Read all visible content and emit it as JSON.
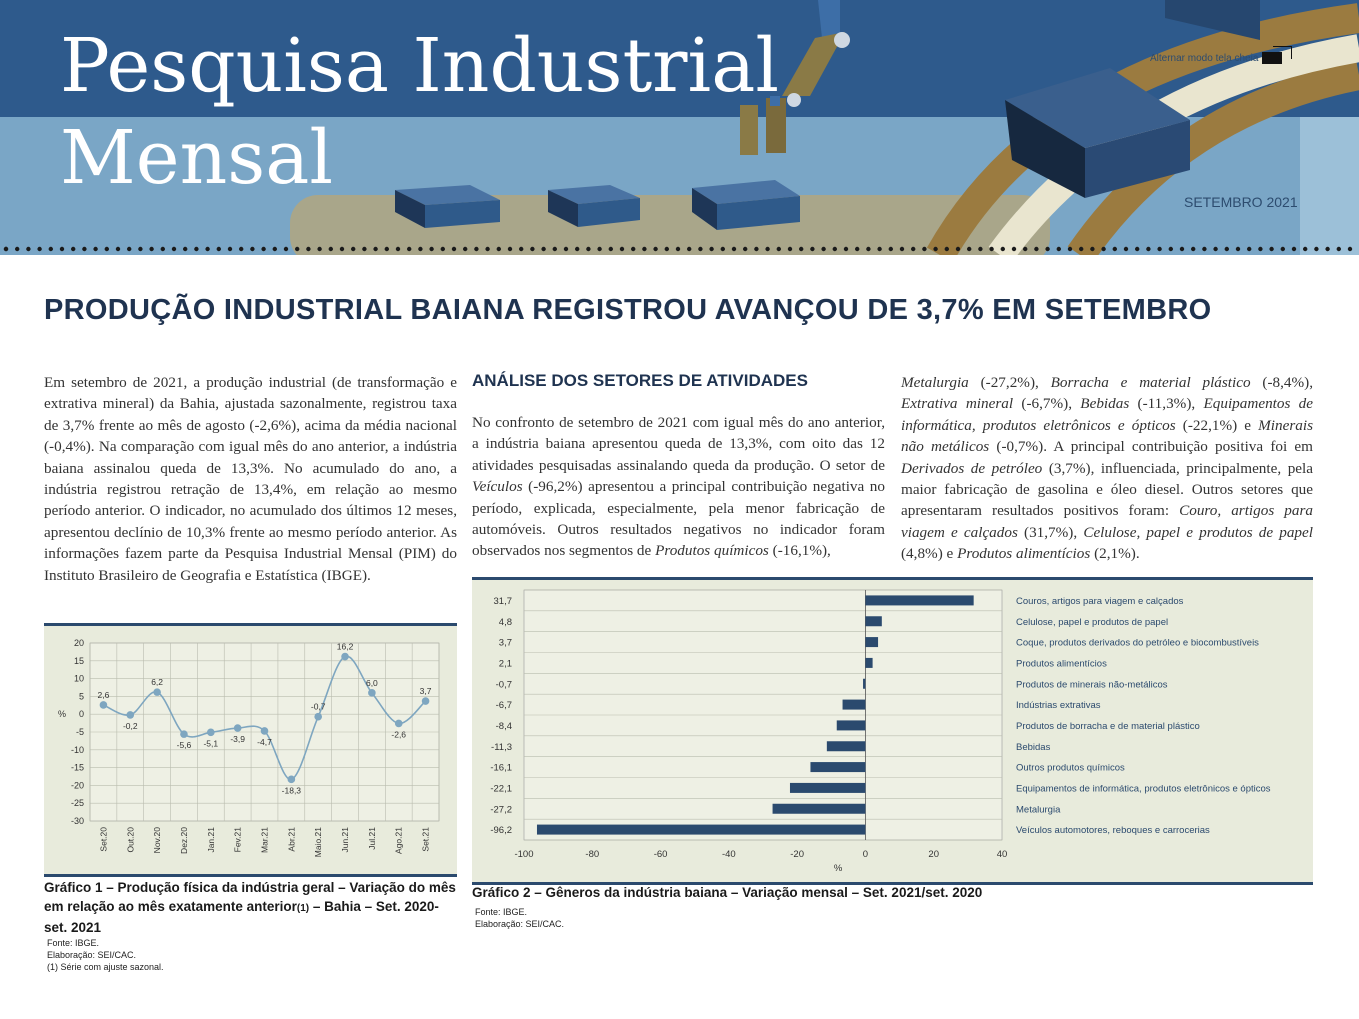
{
  "header": {
    "title_line1": "Pesquisa Industrial",
    "title_line2": "Mensal",
    "fullscreen_label": "Alternar modo tela cheia",
    "edition": "SETEMBRO 2021"
  },
  "headline": "PRODUÇÃO INDUSTRIAL BAIANA REGISTROU AVANÇOU DE 3,7% EM SETEMBRO",
  "intro_paragraph": "Em setembro de 2021, a produção industrial (de transformação e extrativa mineral) da Bahia, ajustada sazonalmente, registrou taxa de 3,7% frente ao mês de agosto (-2,6%), acima da média nacional (-0,4%). Na comparação com igual mês do ano anterior, a indústria baiana assinalou queda de 13,3%. No acumulado do ano, a indústria registrou retração de 13,4%, em relação ao mesmo período anterior. O indicador, no acumulado dos últimos 12 meses, apresentou declínio de 10,3% frente ao mesmo período anterior. As informações fazem parte da Pesquisa Industrial Mensal (PIM) do Instituto Brasileiro de Geografia e Estatística (IBGE).",
  "analysis": {
    "title": "ANÁLISE DOS SETORES DE ATIVIDADES",
    "p1_a": "No confronto de setembro de 2021 com igual mês do ano anterior, a indústria baiana apresentou queda de 13,3%, com oito das 12 atividades pesquisadas assinalando queda da produção. O setor de ",
    "p1_vehicles": "Veículos",
    "p1_b": " (-96,2%) apresentou a principal contribuição negativa no período, explicada, especialmente, pela menor fabricação de automóveis. Outros resultados negativos no indicador foram observados nos segmentos de ",
    "p1_chem": "Produtos químicos",
    "p1_c": " (-16,1%),",
    "p2_metal": "Metalurgia",
    "p2_a": " (-27,2%), ",
    "p2_rubber": "Borracha e material plástico",
    "p2_b": " (-8,4%), ",
    "p2_extr": "Extrativa mineral",
    "p2_c": " (-6,7%), ",
    "p2_bev": "Bebidas",
    "p2_d": " (-11,3%), ",
    "p2_equip": "Equipamentos de informática, produtos eletrônicos e ópticos",
    "p2_e": " (-22,1%) e ",
    "p2_minerals": "Minerais não metálicos",
    "p2_f": " (-0,7%). A principal contribuição positiva foi em ",
    "p2_petro": "Derivados de petróleo",
    "p2_g": " (3,7%), influenciada, principalmente, pela maior fabricação de gasolina e óleo diesel. Outros setores que apresentaram resultados positivos foram: ",
    "p2_leather": "Couro, artigos para viagem e calçados",
    "p2_h": " (31,7%), ",
    "p2_cellulose": "Celulose, papel e produtos de papel",
    "p2_i": " (4,8%) e ",
    "p2_food": "Produtos alimentícios",
    "p2_j": " (2,1%)."
  },
  "captions": {
    "chart1_a": "Gráfico 1 – Produção física da indústria geral – Variação do mês em relação ao mês exatamente anterior",
    "chart1_sup": "(1)",
    "chart1_b": " – Bahia – Set. 2020-set. 2021",
    "chart1_source": "Fonte: IBGE.",
    "chart1_elab": "Elaboração: SEI/CAC.",
    "chart1_note": "(1) Série com ajuste sazonal.",
    "chart2": "Gráfico 2 – Gêneros da indústria baiana – Variação mensal – Set. 2021/set. 2020",
    "chart2_source": "Fonte: IBGE.",
    "chart2_elab": "Elaboração: SEI/CAC."
  },
  "chart_data": [
    {
      "type": "line",
      "title": "Gráfico 1 – Produção física da indústria geral – Variação do mês em relação ao mês exatamente anterior(1) – Bahia – Set. 2020-set. 2021",
      "ylabel": "%",
      "ylim": [
        -30,
        20
      ],
      "yticks": [
        20,
        15,
        10,
        5,
        0,
        -5,
        -10,
        -15,
        -20,
        -25,
        -30
      ],
      "grid": true,
      "categories": [
        "Set.20",
        "Out.20",
        "Nov.20",
        "Dez.20",
        "Jan.21",
        "Fev.21",
        "Mar.21",
        "Abr.21",
        "Maio.21",
        "Jun.21",
        "Jul.21",
        "Ago.21",
        "Set.21"
      ],
      "values": [
        2.6,
        -0.2,
        6.2,
        -5.6,
        -5.1,
        -3.9,
        -4.7,
        -18.3,
        -0.7,
        16.2,
        6.0,
        -2.6,
        3.7
      ],
      "labels": [
        "2,6",
        "-0,2",
        "6,2",
        "-5,6",
        "-5,1",
        "-3,9",
        "-4,7",
        "-18,3",
        "-0,7",
        "16,2",
        "6,0",
        "-2,6",
        "3,7"
      ],
      "color": "#7ea6c0"
    },
    {
      "type": "bar",
      "orientation": "horizontal",
      "title": "Gráfico 2 – Gêneros da indústria baiana – Variação mensal – Set. 2021/set. 2020",
      "xlabel": "%",
      "xlim": [
        -100,
        40
      ],
      "xticks": [
        -100,
        -80,
        -60,
        -40,
        -20,
        0,
        20,
        40
      ],
      "grid": true,
      "categories": [
        "Couros, artigos para viagem e calçados",
        "Celulose, papel e produtos de papel",
        "Coque, produtos derivados do petróleo e biocombustíveis",
        "Produtos alimentícios",
        "Produtos de minerais não-metálicos",
        "Indústrias extrativas",
        "Produtos de borracha e de material plástico",
        "Bebidas",
        "Outros produtos químicos",
        "Equipamentos de informática, produtos eletrônicos e ópticos",
        "Metalurgia",
        "Veículos automotores, reboques e carrocerias"
      ],
      "values": [
        31.7,
        4.8,
        3.7,
        2.1,
        -0.7,
        -6.7,
        -8.4,
        -11.3,
        -16.1,
        -22.1,
        -27.2,
        -96.2
      ],
      "labels": [
        "31,7",
        "4,8",
        "3,7",
        "2,1",
        "-0,7",
        "-6,7",
        "-8,4",
        "-11,3",
        "-16,1",
        "-22,1",
        "-27,2",
        "-96,2"
      ],
      "color": "#2b4a6e"
    }
  ]
}
